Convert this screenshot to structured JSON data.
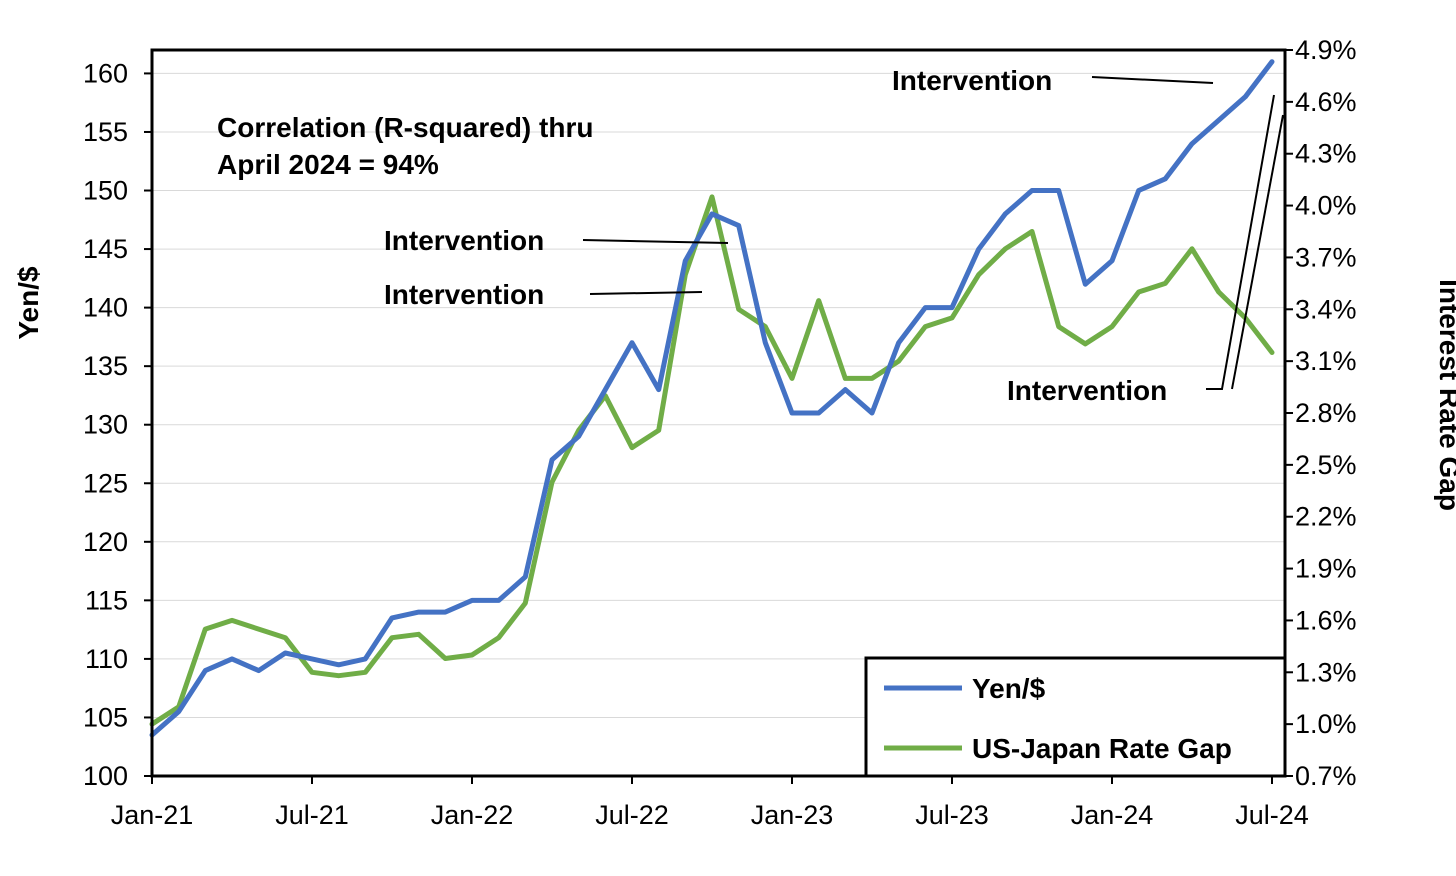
{
  "chart_data": {
    "type": "line",
    "ylabel": "Yen/$",
    "y2label": "Interest Rate Gap",
    "x_tick_labels": [
      "Jan-21",
      "Jul-21",
      "Jan-22",
      "Jul-22",
      "Jan-23",
      "Jul-23",
      "Jan-24",
      "Jul-24"
    ],
    "y_ticks": [
      "100",
      "105",
      "110",
      "115",
      "120",
      "125",
      "130",
      "135",
      "140",
      "145",
      "150",
      "155",
      "160"
    ],
    "y2_ticks": [
      "0.7%",
      "1.0%",
      "1.3%",
      "1.6%",
      "1.9%",
      "2.2%",
      "2.5%",
      "2.8%",
      "3.1%",
      "3.4%",
      "3.7%",
      "4.0%",
      "4.3%",
      "4.6%",
      "4.9%"
    ],
    "ylim": [
      100,
      162
    ],
    "y2lim": [
      0.7,
      4.9
    ],
    "xlim": [
      "2021-01",
      "2024-07"
    ],
    "grid": "horizontal",
    "legend_position": "bottom-right",
    "annotations": {
      "correlation_line1": "Correlation (R-squared) thru",
      "correlation_line2": "April 2024 = 94%",
      "intervention_label": "Intervention"
    },
    "series": [
      {
        "name": "Yen/$",
        "axis": "left",
        "color": "#4472C4",
        "x": [
          "2021-01",
          "2021-02",
          "2021-03",
          "2021-04",
          "2021-05",
          "2021-06",
          "2021-07",
          "2021-08",
          "2021-09",
          "2021-10",
          "2021-11",
          "2021-12",
          "2022-01",
          "2022-02",
          "2022-03",
          "2022-04",
          "2022-05",
          "2022-06",
          "2022-07",
          "2022-08",
          "2022-09",
          "2022-10",
          "2022-11",
          "2022-12",
          "2023-01",
          "2023-02",
          "2023-03",
          "2023-04",
          "2023-05",
          "2023-06",
          "2023-07",
          "2023-08",
          "2023-09",
          "2023-10",
          "2023-11",
          "2023-12",
          "2024-01",
          "2024-02",
          "2024-03",
          "2024-04",
          "2024-05",
          "2024-06",
          "2024-07"
        ],
        "values": [
          103.5,
          105.5,
          109,
          110,
          109,
          110.5,
          110,
          109.5,
          110,
          113.5,
          114,
          114,
          115,
          115,
          117,
          127,
          129,
          133,
          137,
          133,
          144,
          148,
          147,
          137,
          131,
          131,
          133,
          131,
          137,
          140,
          140,
          145,
          148,
          150,
          150,
          142,
          144,
          150,
          151,
          154,
          156,
          158,
          161
        ]
      },
      {
        "name": "US-Japan Rate Gap",
        "axis": "right",
        "color": "#70AD47",
        "x": [
          "2021-01",
          "2021-02",
          "2021-03",
          "2021-04",
          "2021-05",
          "2021-06",
          "2021-07",
          "2021-08",
          "2021-09",
          "2021-10",
          "2021-11",
          "2021-12",
          "2022-01",
          "2022-02",
          "2022-03",
          "2022-04",
          "2022-05",
          "2022-06",
          "2022-07",
          "2022-08",
          "2022-09",
          "2022-10",
          "2022-11",
          "2022-12",
          "2023-01",
          "2023-02",
          "2023-03",
          "2023-04",
          "2023-05",
          "2023-06",
          "2023-07",
          "2023-08",
          "2023-09",
          "2023-10",
          "2023-11",
          "2023-12",
          "2024-01",
          "2024-02",
          "2024-03",
          "2024-04",
          "2024-05",
          "2024-06",
          "2024-07"
        ],
        "values": [
          1.0,
          1.1,
          1.55,
          1.6,
          1.55,
          1.5,
          1.3,
          1.28,
          1.3,
          1.5,
          1.52,
          1.38,
          1.4,
          1.5,
          1.7,
          2.4,
          2.7,
          2.9,
          2.6,
          2.7,
          3.6,
          4.05,
          3.4,
          3.3,
          3.0,
          3.45,
          3.0,
          3.0,
          3.1,
          3.3,
          3.35,
          3.6,
          3.75,
          3.85,
          3.3,
          3.2,
          3.3,
          3.5,
          3.55,
          3.75,
          3.5,
          3.35,
          3.15
        ]
      }
    ]
  }
}
